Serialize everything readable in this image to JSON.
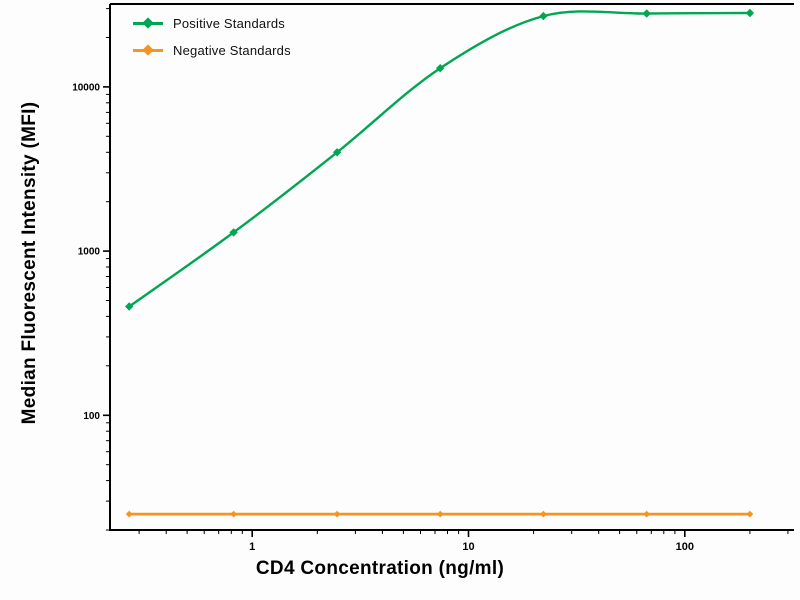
{
  "chart_data": {
    "type": "line",
    "title": "",
    "xlabel": "CD4 Concentration (ng/ml)",
    "ylabel": "Median  Fluorescent Intensity  (MFI)",
    "x_scale": "log",
    "y_scale": "log",
    "xlim": [
      0.22,
      320
    ],
    "ylim": [
      20,
      32000
    ],
    "x_ticks": [
      1,
      10,
      100
    ],
    "y_ticks": [
      100,
      1000,
      10000
    ],
    "grid": false,
    "legend_position": "top-left",
    "series": [
      {
        "name": "Positive Standards",
        "color": "#00a651",
        "marker": "diamond",
        "x": [
          0.27,
          0.82,
          2.47,
          7.4,
          22.2,
          66.7,
          200
        ],
        "values": [
          460,
          1300,
          4000,
          13000,
          27000,
          28000,
          28200
        ]
      },
      {
        "name": "Negative Standards",
        "color": "#f7941e",
        "marker": "diamond",
        "x": [
          0.27,
          0.82,
          2.47,
          7.4,
          22.2,
          66.7,
          200
        ],
        "values": [
          25,
          25,
          25,
          25,
          25,
          25,
          25
        ]
      }
    ]
  }
}
